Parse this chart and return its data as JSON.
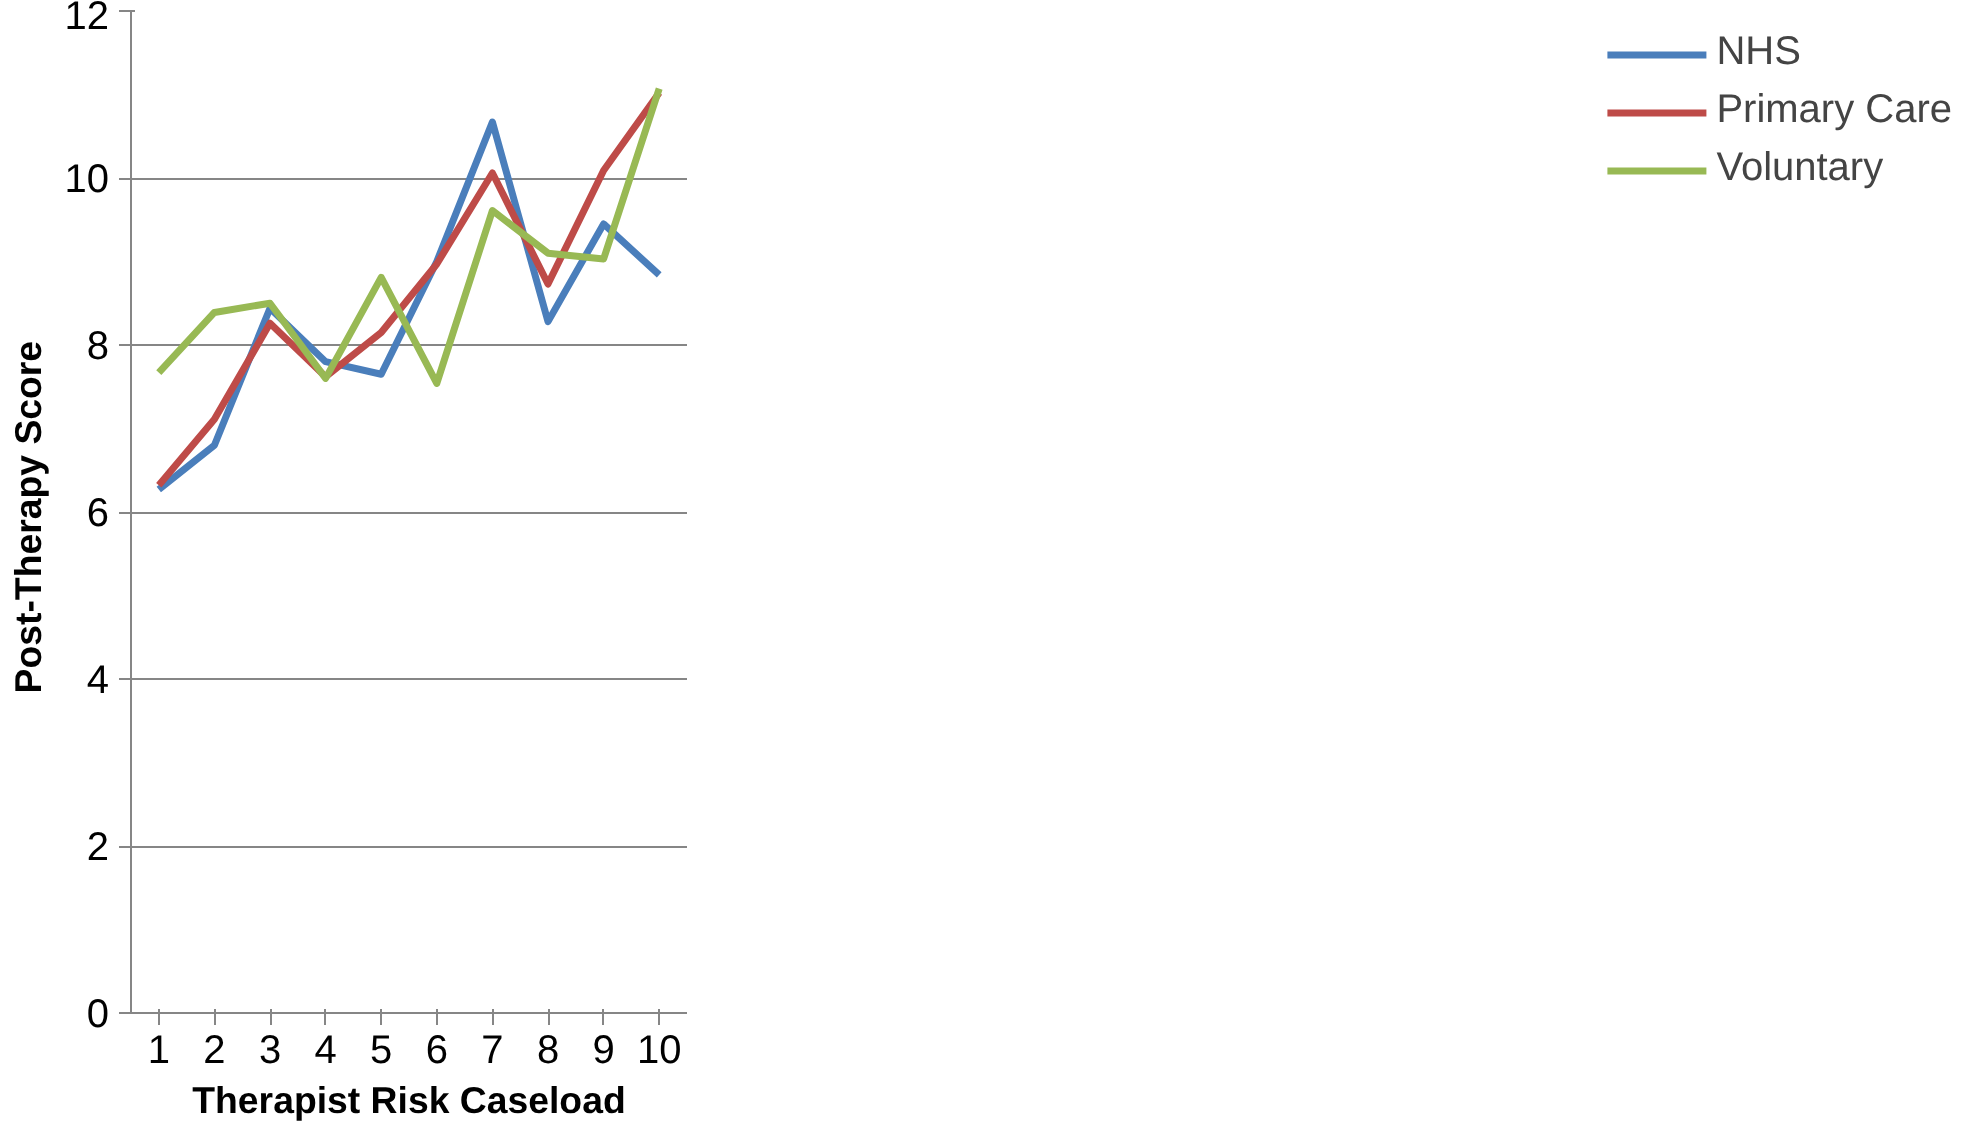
{
  "chart_data": {
    "type": "line",
    "xlabel": "Therapist Risk Caseload",
    "ylabel": "Post-Therapy  Score",
    "categories": [
      "1",
      "2",
      "3",
      "4",
      "5",
      "6",
      "7",
      "8",
      "9",
      "10"
    ],
    "series": [
      {
        "name": "NHS",
        "color": "#4a7ebb",
        "values": [
          6.27,
          6.8,
          8.44,
          7.8,
          7.65,
          9.0,
          10.67,
          8.28,
          9.45,
          8.84
        ]
      },
      {
        "name": "Primary Care",
        "color": "#be4b48",
        "values": [
          6.32,
          7.11,
          8.26,
          7.62,
          8.15,
          8.97,
          10.06,
          8.73,
          10.09,
          11.02
        ]
      },
      {
        "name": "Voluntary",
        "color": "#98b954",
        "values": [
          7.67,
          8.39,
          8.5,
          7.6,
          8.81,
          7.54,
          9.61,
          9.1,
          9.03,
          11.07
        ]
      }
    ],
    "ylim": [
      0,
      12
    ],
    "yticks": [
      0,
      2,
      4,
      6,
      8,
      10,
      12
    ],
    "grid": "y",
    "legend": "right",
    "marker": "none",
    "line_style": "solid"
  }
}
